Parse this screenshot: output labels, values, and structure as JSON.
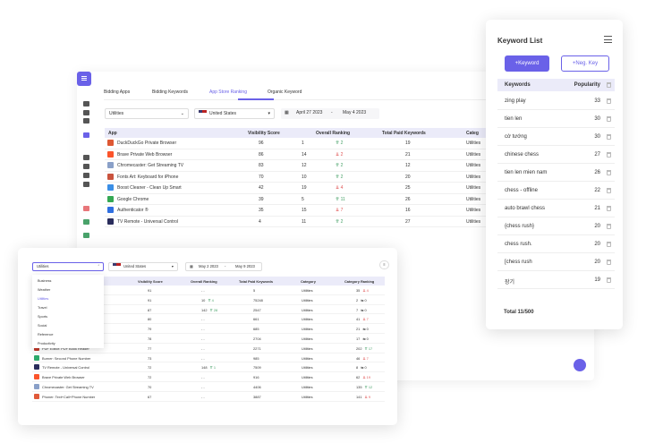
{
  "back": {
    "tabs": [
      "Bidding Apps",
      "Bidding Keywords",
      "App Store Ranking",
      "Organic Keyword"
    ],
    "category_value": "Utilities",
    "country_value": "United States",
    "date_start": "April 27 2023",
    "date_sep": "-",
    "date_end": "May 4 2023",
    "columns": [
      "App",
      "Visibility Score",
      "Overall Ranking",
      "Total Paid Keywords",
      "Categ"
    ],
    "rows": [
      {
        "app": "DuckDuckGo Private Browser",
        "score": "96",
        "rank": "1",
        "delta": "2",
        "dir": "up",
        "paid": "19",
        "cat": "Utilities",
        "color": "#de5833"
      },
      {
        "app": "Brave Private Web Browser",
        "score": "86",
        "rank": "14",
        "delta": "2",
        "dir": "down",
        "paid": "21",
        "cat": "Utilities",
        "color": "#fb542b"
      },
      {
        "app": "Chromecaster: Get Streaming TV",
        "score": "83",
        "rank": "12",
        "delta": "2",
        "dir": "up",
        "paid": "12",
        "cat": "Utilities",
        "color": "#8aa0c8"
      },
      {
        "app": "Fonts Art: Keyboard for iPhone",
        "score": "70",
        "rank": "10",
        "delta": "2",
        "dir": "up",
        "paid": "20",
        "cat": "Utilities",
        "color": "#c9533e"
      },
      {
        "app": "Boost Cleaner - Clean Up Smart",
        "score": "42",
        "rank": "19",
        "delta": "4",
        "dir": "down",
        "paid": "25",
        "cat": "Utilities",
        "color": "#3a8ee6"
      },
      {
        "app": "Google Chrome",
        "score": "39",
        "rank": "5",
        "delta": "11",
        "dir": "up",
        "paid": "26",
        "cat": "Utilities",
        "color": "#34a853"
      },
      {
        "app": "Authenticator ®",
        "score": "35",
        "rank": "15",
        "delta": "7",
        "dir": "down",
        "paid": "16",
        "cat": "Utilities",
        "color": "#2f6fe0"
      },
      {
        "app": "TV Remote - Universal Control",
        "score": "4",
        "rank": "11",
        "delta": "2",
        "dir": "up",
        "paid": "27",
        "cat": "Utilities",
        "color": "#2a2d5c"
      }
    ]
  },
  "front": {
    "category_value": "Utilities",
    "country_value": "United States",
    "date_start": "May 2 2023",
    "date_sep": "-",
    "date_end": "May 9 2023",
    "dropdown_options": [
      "Business",
      "Weather",
      "Utilities",
      "Travel",
      "Sports",
      "Social",
      "Reference",
      "Productivity"
    ],
    "columns": [
      "Visibility Score",
      "Overall Ranking",
      "Total Paid Keywords",
      "Category",
      "Category Ranking"
    ],
    "rows": [
      {
        "app": "",
        "score": "91",
        "rank": "- -",
        "rdelta": "",
        "rdir": "",
        "paid": "5",
        "cat": "Utilities",
        "crank": "35",
        "cdelta": "4",
        "cdir": "down",
        "color": ""
      },
      {
        "app": "",
        "score": "91",
        "rank": "10",
        "rdelta": "4",
        "rdir": "up",
        "paid": "75248",
        "cat": "Utilities",
        "crank": "2",
        "cdelta": "0",
        "cdir": "flat",
        "color": ""
      },
      {
        "app": "",
        "score": "87",
        "rank": "142",
        "rdelta": "28",
        "rdir": "up",
        "paid": "2547",
        "cat": "Utilities",
        "crank": "7",
        "cdelta": "0",
        "cdir": "flat",
        "color": ""
      },
      {
        "app": "",
        "score": "80",
        "rank": "- -",
        "rdelta": "",
        "rdir": "",
        "paid": "661",
        "cat": "Utilities",
        "crank": "41",
        "cdelta": "7",
        "cdir": "down",
        "color": ""
      },
      {
        "app": "",
        "score": "79",
        "rank": "- -",
        "rdelta": "",
        "rdir": "",
        "paid": "685",
        "cat": "Utilities",
        "crank": "21",
        "cdelta": "0",
        "cdir": "flat",
        "color": ""
      },
      {
        "app": "",
        "score": "78",
        "rank": "- -",
        "rdelta": "",
        "rdir": "",
        "paid": "2704",
        "cat": "Utilities",
        "crank": "17",
        "cdelta": "0",
        "cdir": "flat",
        "color": ""
      },
      {
        "app": "PDF Editor: PDF Book Reader",
        "score": "77",
        "rank": "- -",
        "rdelta": "",
        "rdir": "",
        "paid": "2271",
        "cat": "Utilities",
        "crank": "202",
        "cdelta": "17",
        "cdir": "up",
        "color": "#c0392b"
      },
      {
        "app": "Burner: Second Phone Number",
        "score": "73",
        "rank": "- -",
        "rdelta": "",
        "rdir": "",
        "paid": "985",
        "cat": "Utilities",
        "crank": "46",
        "cdelta": "7",
        "cdir": "down",
        "color": "#2eaa6c"
      },
      {
        "app": "TV Remote - Universal Control",
        "score": "72",
        "rank": "148",
        "rdelta": "1",
        "rdir": "up",
        "paid": "7509",
        "cat": "Utilities",
        "crank": "8",
        "cdelta": "0",
        "cdir": "flat",
        "color": "#2a2d5c"
      },
      {
        "app": "Brave Private Web Browser",
        "score": "72",
        "rank": "- -",
        "rdelta": "",
        "rdir": "",
        "paid": "916",
        "cat": "Utilities",
        "crank": "62",
        "cdelta": "19",
        "cdir": "down",
        "color": "#fb542b"
      },
      {
        "app": "Chromecaster: Get Streaming TV",
        "score": "70",
        "rank": "- -",
        "rdelta": "",
        "rdir": "",
        "paid": "4406",
        "cat": "Utilities",
        "crank": "135",
        "cdelta": "12",
        "cdir": "up",
        "color": "#8aa0c8"
      },
      {
        "app": "Phoner: Text+Call+Phone Number",
        "score": "67",
        "rank": "- -",
        "rdelta": "",
        "rdir": "",
        "paid": "3887",
        "cat": "Utilities",
        "crank": "141",
        "cdelta": "9",
        "cdir": "down",
        "color": "#e05a3a"
      }
    ]
  },
  "keywords": {
    "title": "Keyword List",
    "add_label": "+Keyword",
    "neg_label": "+Neg. Key",
    "col_keywords": "Keywords",
    "col_popularity": "Popularity",
    "rows": [
      {
        "kw": "zing play",
        "pop": "33"
      },
      {
        "kw": "tien len",
        "pop": "30"
      },
      {
        "kw": "cờ tướng",
        "pop": "30"
      },
      {
        "kw": "chinese chess",
        "pop": "27"
      },
      {
        "kw": "tien len mien nam",
        "pop": "26"
      },
      {
        "kw": "chess - offline",
        "pop": "22"
      },
      {
        "kw": "auto brawl chess",
        "pop": "21"
      },
      {
        "kw": "{chess rush}",
        "pop": "20"
      },
      {
        "kw": "chess rush.",
        "pop": "20"
      },
      {
        "kw": "[chess rush",
        "pop": "20"
      },
      {
        "kw": "장기",
        "pop": "19"
      }
    ],
    "total": "Total 11/500"
  },
  "colors": {
    "accent": "#6a61e8",
    "header_bg": "#ebebf9",
    "up": "#49a26a",
    "down": "#e05555"
  }
}
